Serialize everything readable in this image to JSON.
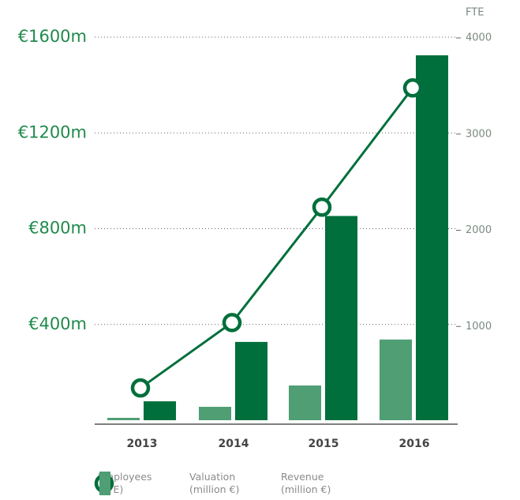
{
  "chart_data": {
    "type": "bar",
    "y2label": "FTE",
    "categories": [
      "2013",
      "2014",
      "2015",
      "2016"
    ],
    "series": [
      {
        "name": "Employees (FTE)",
        "type": "line",
        "axis": "y2",
        "color": "#006f3c",
        "values": [
          360,
          1040,
          2240,
          3480
        ]
      },
      {
        "name": "Valuation (million €)",
        "type": "bar",
        "color": "#006f3c",
        "values": [
          79,
          327,
          853,
          1524
        ]
      },
      {
        "name": "Revenue (million €)",
        "type": "bar",
        "color": "#4f9e74",
        "values": [
          10,
          56,
          145,
          337
        ]
      }
    ],
    "ylim": [
      0,
      1600
    ],
    "yticks": [
      {
        "value": 400,
        "label": "€400m"
      },
      {
        "value": 800,
        "label": "€800m"
      },
      {
        "value": 1200,
        "label": "€1200m"
      },
      {
        "value": 1600,
        "label": "€1600m"
      }
    ],
    "y2lim": [
      0,
      4000
    ],
    "y2ticks": [
      1000,
      2000,
      3000,
      4000
    ],
    "grid": true
  }
}
